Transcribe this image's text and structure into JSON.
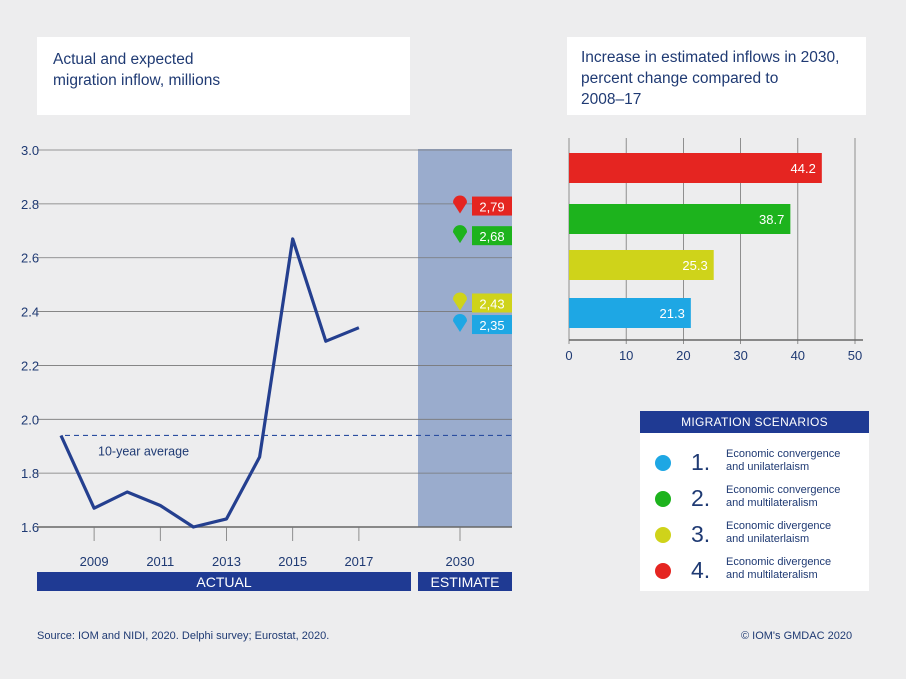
{
  "left_title": [
    "Actual and expected",
    "migration inflow, millions"
  ],
  "right_title": [
    "Increase in estimated inflows in 2030,",
    "percent change compared to",
    "2008–17"
  ],
  "source": "Source: IOM and NIDI, 2020. Delphi survey; Eurostat, 2020.",
  "copyright": "© IOM's GMDAC 2020",
  "chart_data": [
    {
      "type": "line",
      "x": [
        2008,
        2009,
        2010,
        2011,
        2012,
        2013,
        2014,
        2015,
        2016,
        2017
      ],
      "series": [
        {
          "values": [
            1.94,
            1.67,
            1.73,
            1.68,
            1.6,
            1.63,
            1.86,
            2.67,
            2.29,
            2.34
          ]
        }
      ],
      "x_tick_labels": [
        "2009",
        "2011",
        "2013",
        "2015",
        "2017",
        "2030"
      ],
      "y_tick_labels": [
        "3.0",
        "2.8",
        "2.6",
        "2.4",
        "2.2",
        "2.0",
        "1.8",
        "1.6"
      ],
      "ylim": [
        1.55,
        3.0
      ],
      "grid": true,
      "average": {
        "label": "10-year average",
        "value": 1.94
      },
      "sections": {
        "actual": "ACTUAL",
        "estimate": "ESTIMATE"
      },
      "estimates": [
        {
          "label": "2,79",
          "value": 2.79,
          "color": "#e52521"
        },
        {
          "label": "2,68",
          "value": 2.68,
          "color": "#1db31d"
        },
        {
          "label": "2,43",
          "value": 2.43,
          "color": "#cfd31a"
        },
        {
          "label": "2,35",
          "value": 2.35,
          "color": "#1ea7e4"
        }
      ],
      "line_color": "#243f8f"
    },
    {
      "type": "bar",
      "orientation": "horizontal",
      "values": [
        44.2,
        38.7,
        25.3,
        21.3
      ],
      "value_labels": [
        "44.2",
        "38.7",
        "25.3",
        "21.3"
      ],
      "colors": [
        "#e52521",
        "#1db31d",
        "#cfd31a",
        "#1ea7e4"
      ],
      "x_tick_labels": [
        "0",
        "10",
        "20",
        "30",
        "40",
        "50"
      ],
      "xlim": [
        0,
        50
      ],
      "grid": true
    }
  ],
  "legend": {
    "title": "MIGRATION SCENARIOS",
    "items": [
      {
        "number": "1.",
        "line1": "Economic convergence",
        "line2": "and unilaterlaism",
        "color": "#1ea7e4"
      },
      {
        "number": "2.",
        "line1": "Economic convergence",
        "line2": "and multilateralism",
        "color": "#1db31d"
      },
      {
        "number": "3.",
        "line1": "Economic divergence",
        "line2": "and unilaterlaism",
        "color": "#cfd31a"
      },
      {
        "number": "4.",
        "line1": "Economic divergence",
        "line2": "and multilateralism",
        "color": "#e52521"
      }
    ]
  }
}
